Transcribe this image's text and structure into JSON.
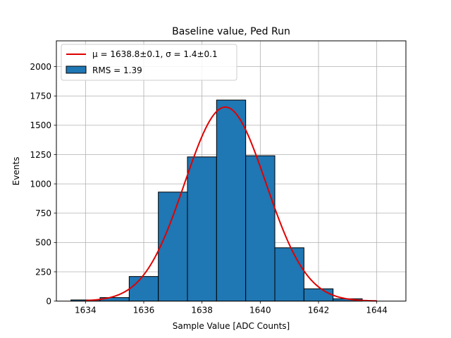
{
  "chart_data": {
    "type": "bar",
    "title": "Baseline value, Ped Run",
    "xlabel": "Sample Value [ADC Counts]",
    "ylabel": "Events",
    "xlim": [
      1633,
      1645
    ],
    "ylim": [
      0,
      2220
    ],
    "xticks": [
      1634,
      1636,
      1638,
      1640,
      1642,
      1644
    ],
    "yticks": [
      0,
      250,
      500,
      750,
      1000,
      1250,
      1500,
      1750,
      2000
    ],
    "grid": true,
    "legend_position": "top-left",
    "bin_width": 1,
    "bins": [
      {
        "x": 1634,
        "value": 10
      },
      {
        "x": 1635,
        "value": 30
      },
      {
        "x": 1636,
        "value": 210
      },
      {
        "x": 1637,
        "value": 930
      },
      {
        "x": 1638,
        "value": 1230
      },
      {
        "x": 1639,
        "value": 1715
      },
      {
        "x": 1640,
        "value": 1240
      },
      {
        "x": 1641,
        "value": 455
      },
      {
        "x": 1642,
        "value": 105
      },
      {
        "x": 1643,
        "value": 20
      }
    ],
    "fit": {
      "label": "μ = 1638.8±0.1, σ = 1.4±0.1",
      "mu": 1638.8,
      "sigma": 1.4,
      "amplitude": 1655,
      "x_range": [
        1634,
        1644
      ],
      "color": "#e00000"
    },
    "series": [
      {
        "name": "RMS = 1.39",
        "color": "#1f77b4",
        "edge_color": "#000000"
      }
    ]
  }
}
